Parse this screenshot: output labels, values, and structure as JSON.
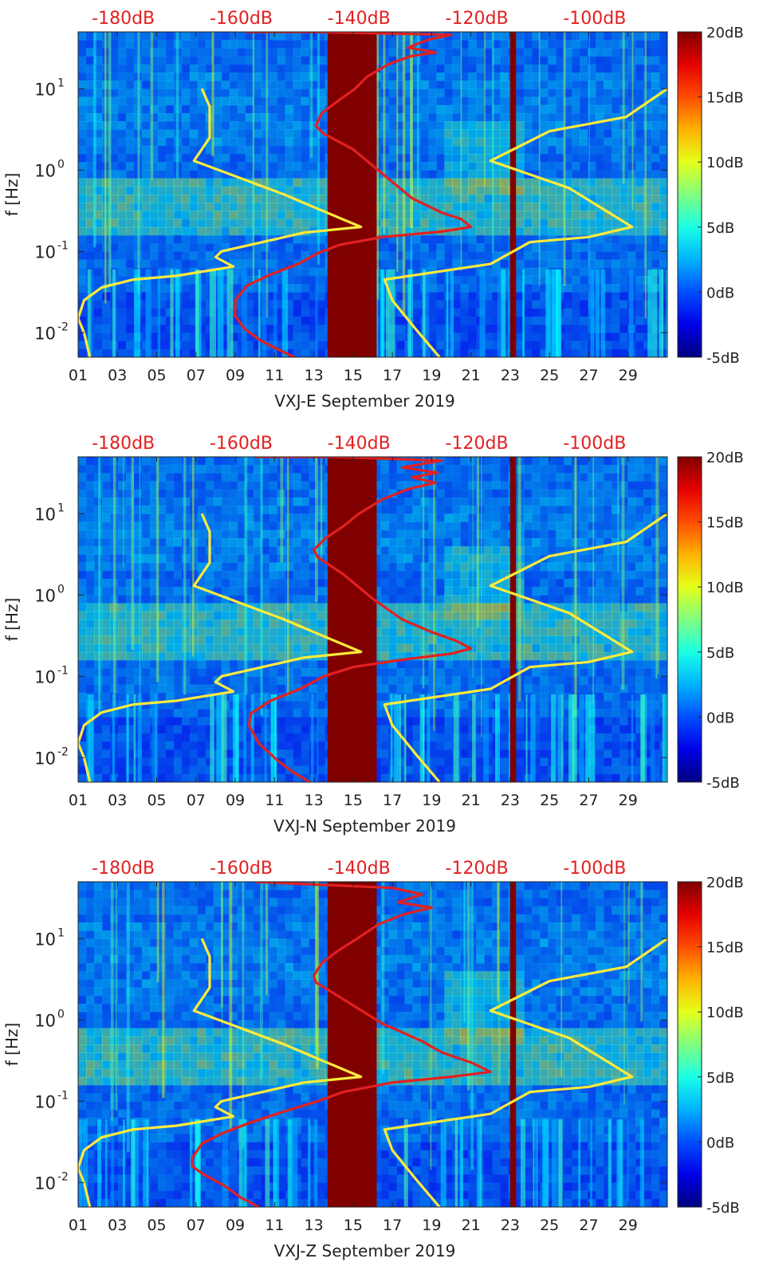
{
  "chart_data": [
    {
      "type": "heatmap",
      "station": "VXJ-E",
      "xlabel": "VXJ-E September 2019",
      "ylabel": "f [Hz]",
      "x_ticks": [
        "01",
        "03",
        "05",
        "07",
        "09",
        "11",
        "13",
        "15",
        "17",
        "19",
        "21",
        "23",
        "25",
        "27",
        "29"
      ],
      "x_range_days": [
        1,
        31
      ],
      "y_ticks": [
        "10",
        "10",
        "10",
        "10"
      ],
      "y_tick_exponents": [
        "-2",
        "-1",
        "0",
        "1"
      ],
      "y_tick_values": [
        0.01,
        0.1,
        1,
        10
      ],
      "y_range_hz": [
        0.005,
        50
      ],
      "top_axis_labels": [
        "-180dB",
        "-160dB",
        "-140dB",
        "-120dB",
        "-100dB"
      ],
      "top_axis_day_positions": [
        3.3,
        9.3,
        15.3,
        21.3,
        27.3
      ],
      "colorbar": {
        "labels": [
          "20dB",
          "15dB",
          "10dB",
          "5dB",
          "0dB",
          "-5dB"
        ],
        "range_db": [
          -5,
          20
        ],
        "colormap": "jet"
      },
      "gap_bands": [
        {
          "from_day": 13.7,
          "to_day": 16.2
        },
        {
          "from_day": 23.0,
          "to_day": 23.3
        }
      ],
      "series": [
        {
          "name": "yellow reference curves",
          "color": "#ffeb3b",
          "segments": [
            [
              [
                7.3,
                10
              ],
              [
                7.7,
                6
              ],
              [
                7.7,
                2.5
              ],
              [
                6.9,
                1.3
              ],
              [
                11.5,
                0.5
              ],
              [
                13,
                0.35
              ],
              [
                15.4,
                0.2
              ],
              [
                12.5,
                0.17
              ],
              [
                8.3,
                0.1
              ],
              [
                8,
                0.085
              ],
              [
                8.9,
                0.065
              ],
              [
                6,
                0.05
              ],
              [
                3.8,
                0.045
              ],
              [
                2.2,
                0.036
              ],
              [
                1.3,
                0.025
              ],
              [
                1,
                0.015
              ],
              [
                1.3,
                0.01
              ],
              [
                1.6,
                0.005
              ]
            ],
            [
              [
                31,
                10
              ],
              [
                28.9,
                4.5
              ],
              [
                25,
                3
              ],
              [
                22,
                1.3
              ],
              [
                26,
                0.6
              ],
              [
                29.2,
                0.2
              ],
              [
                27,
                0.15
              ],
              [
                24,
                0.13
              ],
              [
                22,
                0.07
              ],
              [
                16.6,
                0.045
              ],
              [
                17,
                0.025
              ],
              [
                18.2,
                0.011
              ],
              [
                19.4,
                0.005
              ]
            ]
          ]
        },
        {
          "name": "red reference curve",
          "color": "#e32020",
          "segments": [
            [
              [
                12,
                0.005
              ],
              [
                11.2,
                0.0062
              ],
              [
                10.3,
                0.008
              ],
              [
                9.5,
                0.011
              ],
              [
                9,
                0.016
              ],
              [
                9,
                0.025
              ],
              [
                9.6,
                0.038
              ],
              [
                10.8,
                0.052
              ],
              [
                12.2,
                0.07
              ],
              [
                13.2,
                0.095
              ],
              [
                14.3,
                0.12
              ],
              [
                16.5,
                0.15
              ],
              [
                19.5,
                0.175
              ],
              [
                21,
                0.2
              ],
              [
                20.5,
                0.25
              ],
              [
                19.5,
                0.3
              ],
              [
                18,
                0.45
              ],
              [
                16.5,
                0.9
              ],
              [
                15,
                1.8
              ],
              [
                13.5,
                2.8
              ],
              [
                13.1,
                3.5
              ],
              [
                13.4,
                5
              ],
              [
                14.2,
                7
              ],
              [
                15.1,
                10
              ],
              [
                15.7,
                14
              ],
              [
                16.8,
                20
              ],
              [
                17.9,
                25
              ],
              [
                19.2,
                28
              ],
              [
                17.8,
                32
              ],
              [
                18.8,
                40
              ],
              [
                20,
                46
              ],
              [
                13,
                50
              ],
              [
                10,
                50
              ],
              [
                9.5,
                50
              ]
            ]
          ]
        }
      ]
    },
    {
      "type": "heatmap",
      "station": "VXJ-N",
      "xlabel": "VXJ-N September 2019",
      "ylabel": "f [Hz]",
      "x_ticks": [
        "01",
        "03",
        "05",
        "07",
        "09",
        "11",
        "13",
        "15",
        "17",
        "19",
        "21",
        "23",
        "25",
        "27",
        "29"
      ],
      "x_range_days": [
        1,
        31
      ],
      "y_ticks": [
        "10",
        "10",
        "10",
        "10"
      ],
      "y_tick_exponents": [
        "-2",
        "-1",
        "0",
        "1"
      ],
      "y_tick_values": [
        0.01,
        0.1,
        1,
        10
      ],
      "y_range_hz": [
        0.005,
        50
      ],
      "top_axis_labels": [
        "-180dB",
        "-160dB",
        "-140dB",
        "-120dB",
        "-100dB"
      ],
      "top_axis_day_positions": [
        3.3,
        9.3,
        15.3,
        21.3,
        27.3
      ],
      "colorbar": {
        "labels": [
          "20dB",
          "15dB",
          "10dB",
          "5dB",
          "0dB",
          "-5dB"
        ],
        "range_db": [
          -5,
          20
        ],
        "colormap": "jet"
      },
      "gap_bands": [
        {
          "from_day": 13.7,
          "to_day": 16.2
        },
        {
          "from_day": 23.0,
          "to_day": 23.3
        }
      ],
      "series": [
        {
          "name": "yellow reference curves",
          "color": "#ffeb3b",
          "segments": [
            [
              [
                7.3,
                10
              ],
              [
                7.7,
                6
              ],
              [
                7.7,
                2.5
              ],
              [
                6.9,
                1.3
              ],
              [
                11.5,
                0.5
              ],
              [
                13,
                0.35
              ],
              [
                15.4,
                0.2
              ],
              [
                12.5,
                0.17
              ],
              [
                8.3,
                0.1
              ],
              [
                8,
                0.085
              ],
              [
                8.9,
                0.065
              ],
              [
                6,
                0.05
              ],
              [
                3.8,
                0.045
              ],
              [
                2.2,
                0.036
              ],
              [
                1.3,
                0.025
              ],
              [
                1,
                0.015
              ],
              [
                1.3,
                0.01
              ],
              [
                1.6,
                0.005
              ]
            ],
            [
              [
                31,
                10
              ],
              [
                28.9,
                4.5
              ],
              [
                25,
                3
              ],
              [
                22,
                1.3
              ],
              [
                26,
                0.6
              ],
              [
                29.2,
                0.2
              ],
              [
                27,
                0.15
              ],
              [
                24,
                0.13
              ],
              [
                22,
                0.07
              ],
              [
                16.6,
                0.045
              ],
              [
                17,
                0.025
              ],
              [
                18.2,
                0.011
              ],
              [
                19.4,
                0.005
              ]
            ]
          ]
        },
        {
          "name": "red reference curve",
          "color": "#e32020",
          "segments": [
            [
              [
                12.8,
                0.005
              ],
              [
                12,
                0.0065
              ],
              [
                11.2,
                0.009
              ],
              [
                10.2,
                0.015
              ],
              [
                9.7,
                0.025
              ],
              [
                9.8,
                0.035
              ],
              [
                10.8,
                0.05
              ],
              [
                12.3,
                0.07
              ],
              [
                13.5,
                0.1
              ],
              [
                15,
                0.13
              ],
              [
                17.5,
                0.16
              ],
              [
                20,
                0.19
              ],
              [
                21,
                0.22
              ],
              [
                20.3,
                0.27
              ],
              [
                19,
                0.35
              ],
              [
                17.5,
                0.5
              ],
              [
                16,
                0.9
              ],
              [
                14.5,
                1.8
              ],
              [
                13.2,
                2.9
              ],
              [
                13,
                3.6
              ],
              [
                13.6,
                5
              ],
              [
                14.5,
                7
              ],
              [
                15.3,
                10
              ],
              [
                16.5,
                15
              ],
              [
                17.8,
                20
              ],
              [
                19.2,
                24
              ],
              [
                18,
                28
              ],
              [
                19.3,
                32
              ],
              [
                17.5,
                37
              ],
              [
                19.5,
                45
              ],
              [
                14,
                50
              ],
              [
                10,
                50
              ]
            ]
          ]
        }
      ]
    },
    {
      "type": "heatmap",
      "station": "VXJ-Z",
      "xlabel": "VXJ-Z September 2019",
      "ylabel": "f [Hz]",
      "x_ticks": [
        "01",
        "03",
        "05",
        "07",
        "09",
        "11",
        "13",
        "15",
        "17",
        "19",
        "21",
        "23",
        "25",
        "27",
        "29"
      ],
      "x_range_days": [
        1,
        31
      ],
      "y_ticks": [
        "10",
        "10",
        "10",
        "10"
      ],
      "y_tick_exponents": [
        "-2",
        "-1",
        "0",
        "1"
      ],
      "y_tick_values": [
        0.01,
        0.1,
        1,
        10
      ],
      "y_range_hz": [
        0.005,
        50
      ],
      "top_axis_labels": [
        "-180dB",
        "-160dB",
        "-140dB",
        "-120dB",
        "-100dB"
      ],
      "top_axis_day_positions": [
        3.3,
        9.3,
        15.3,
        21.3,
        27.3
      ],
      "colorbar": {
        "labels": [
          "20dB",
          "15dB",
          "10dB",
          "5dB",
          "0dB",
          "-5dB"
        ],
        "range_db": [
          -5,
          20
        ],
        "colormap": "jet"
      },
      "gap_bands": [
        {
          "from_day": 13.7,
          "to_day": 16.2
        },
        {
          "from_day": 23.0,
          "to_day": 23.3
        }
      ],
      "series": [
        {
          "name": "yellow reference curves",
          "color": "#ffeb3b",
          "segments": [
            [
              [
                7.3,
                10
              ],
              [
                7.7,
                6
              ],
              [
                7.7,
                2.5
              ],
              [
                6.9,
                1.3
              ],
              [
                11.5,
                0.5
              ],
              [
                13,
                0.35
              ],
              [
                15.4,
                0.2
              ],
              [
                12.5,
                0.17
              ],
              [
                8.3,
                0.1
              ],
              [
                8,
                0.085
              ],
              [
                8.9,
                0.065
              ],
              [
                6,
                0.05
              ],
              [
                3.8,
                0.045
              ],
              [
                2.2,
                0.036
              ],
              [
                1.3,
                0.025
              ],
              [
                1,
                0.015
              ],
              [
                1.3,
                0.01
              ],
              [
                1.6,
                0.005
              ]
            ],
            [
              [
                31,
                10
              ],
              [
                28.9,
                4.5
              ],
              [
                25,
                3
              ],
              [
                22,
                1.3
              ],
              [
                26,
                0.6
              ],
              [
                29.2,
                0.2
              ],
              [
                27,
                0.15
              ],
              [
                24,
                0.13
              ],
              [
                22,
                0.07
              ],
              [
                16.6,
                0.045
              ],
              [
                17,
                0.025
              ],
              [
                18.2,
                0.011
              ],
              [
                19.4,
                0.005
              ]
            ]
          ]
        },
        {
          "name": "red reference curve",
          "color": "#e32020",
          "segments": [
            [
              [
                10.2,
                0.005
              ],
              [
                9.3,
                0.0065
              ],
              [
                8.5,
                0.009
              ],
              [
                7.3,
                0.013
              ],
              [
                6.8,
                0.016
              ],
              [
                6.8,
                0.02
              ],
              [
                7.3,
                0.03
              ],
              [
                8.3,
                0.04
              ],
              [
                9.8,
                0.055
              ],
              [
                11.5,
                0.075
              ],
              [
                13.2,
                0.1
              ],
              [
                14.5,
                0.13
              ],
              [
                17,
                0.17
              ],
              [
                20,
                0.2
              ],
              [
                22,
                0.23
              ],
              [
                21,
                0.3
              ],
              [
                19.5,
                0.4
              ],
              [
                18.5,
                0.55
              ],
              [
                16.5,
                0.9
              ],
              [
                14.5,
                1.8
              ],
              [
                13.1,
                2.9
              ],
              [
                13,
                3.5
              ],
              [
                13.4,
                5
              ],
              [
                14.2,
                7
              ],
              [
                15.2,
                10
              ],
              [
                16.3,
                15
              ],
              [
                17.6,
                20
              ],
              [
                19,
                24
              ],
              [
                17.3,
                28
              ],
              [
                18.5,
                35
              ],
              [
                17,
                42
              ],
              [
                10,
                50
              ]
            ]
          ]
        }
      ]
    }
  ]
}
